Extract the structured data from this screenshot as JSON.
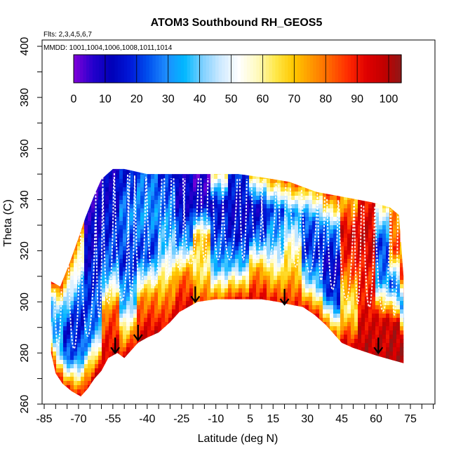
{
  "chart_data": {
    "type": "heatmap",
    "title": "ATOM3 Southbound RH_GEOS5",
    "xlabel": "Latitude (deg N)",
    "ylabel": "Theta (C)",
    "xlim": [
      -85,
      85
    ],
    "ylim": [
      260,
      400
    ],
    "xticks": [
      -85,
      -70,
      -55,
      -40,
      -25,
      -10,
      5,
      15,
      30,
      45,
      60,
      75
    ],
    "xtick_labels": [
      "-85",
      "-70",
      "-55",
      "-40",
      "-25",
      "-10",
      "5",
      "15",
      "30",
      "45",
      "60",
      "75"
    ],
    "yticks": [
      260,
      280,
      300,
      320,
      340,
      360,
      380,
      400
    ],
    "ytick_labels": [
      "260",
      "280",
      "300",
      "320",
      "340",
      "360",
      "380",
      "400"
    ],
    "annotations": [
      "Flts: 2,3,4,5,6,7",
      "MMDD: 1001,1004,1006,1008,1011,1014"
    ],
    "colorbar": {
      "min": 0,
      "max": 104,
      "ticks": [
        0,
        10,
        20,
        30,
        40,
        50,
        60,
        70,
        80,
        90,
        100
      ],
      "tick_labels": [
        "0",
        "10",
        "20",
        "30",
        "40",
        "50",
        "60",
        "70",
        "80",
        "90",
        "100"
      ],
      "colors": [
        "#7a00d8",
        "#2200cc",
        "#0000b8",
        "#0018d8",
        "#0050ee",
        "#1e8cff",
        "#00b8ff",
        "#7fd0ff",
        "#cfeaff",
        "#ffffff",
        "#fffac0",
        "#ffe84a",
        "#ffc800",
        "#ff9600",
        "#ff6400",
        "#ff2a00",
        "#e00000",
        "#c00000",
        "#8b1a1a"
      ]
    },
    "data_extent": {
      "bottom_boundary": [
        [
          -82,
          280
        ],
        [
          -80,
          272
        ],
        [
          -77,
          268
        ],
        [
          -73,
          265
        ],
        [
          -69,
          263
        ],
        [
          -66,
          266
        ],
        [
          -63,
          270
        ],
        [
          -60,
          273
        ],
        [
          -57,
          278
        ],
        [
          -53,
          280
        ],
        [
          -50,
          278
        ],
        [
          -47,
          281
        ],
        [
          -44,
          284
        ],
        [
          -40,
          286
        ],
        [
          -35,
          288
        ],
        [
          -30,
          292
        ],
        [
          -26,
          296
        ],
        [
          -22,
          298
        ],
        [
          -18,
          300
        ],
        [
          -10,
          301
        ],
        [
          0,
          301
        ],
        [
          10,
          301
        ],
        [
          17,
          300
        ],
        [
          22,
          299
        ],
        [
          28,
          298
        ],
        [
          33,
          295
        ],
        [
          38,
          291
        ],
        [
          42,
          287
        ],
        [
          45,
          284
        ],
        [
          50,
          282
        ],
        [
          60,
          279
        ],
        [
          68,
          277
        ],
        [
          72,
          276
        ]
      ],
      "top_boundary": [
        [
          -82,
          308
        ],
        [
          -78,
          306
        ],
        [
          -74,
          315
        ],
        [
          -70,
          325
        ],
        [
          -67,
          333
        ],
        [
          -63,
          342
        ],
        [
          -60,
          348
        ],
        [
          -55,
          352
        ],
        [
          -50,
          352
        ],
        [
          -45,
          351
        ],
        [
          -40,
          350
        ],
        [
          -30,
          350
        ],
        [
          -18,
          350
        ],
        [
          -10,
          350
        ],
        [
          0,
          350
        ],
        [
          8,
          349
        ],
        [
          15,
          348
        ],
        [
          22,
          347
        ],
        [
          28,
          345
        ],
        [
          34,
          343
        ],
        [
          40,
          342
        ],
        [
          46,
          341
        ],
        [
          52,
          340
        ],
        [
          58,
          339
        ],
        [
          62,
          338
        ],
        [
          66,
          337
        ],
        [
          70,
          334
        ],
        [
          72,
          310
        ]
      ]
    },
    "rh_field_bands": [
      {
        "lat_from": -82,
        "lat_to": -76,
        "values_low_to_high": [
          90,
          45,
          30,
          40,
          85
        ]
      },
      {
        "lat_from": -76,
        "lat_to": -68,
        "values_low_to_high": [
          88,
          25,
          15,
          45,
          75
        ]
      },
      {
        "lat_from": -68,
        "lat_to": -60,
        "values_low_to_high": [
          95,
          30,
          20,
          12,
          8
        ]
      },
      {
        "lat_from": -60,
        "lat_to": -52,
        "values_low_to_high": [
          95,
          80,
          25,
          15,
          10
        ]
      },
      {
        "lat_from": -52,
        "lat_to": -44,
        "values_low_to_high": [
          92,
          40,
          18,
          28,
          15
        ]
      },
      {
        "lat_from": -44,
        "lat_to": -36,
        "values_low_to_high": [
          96,
          75,
          20,
          30,
          25
        ]
      },
      {
        "lat_from": -36,
        "lat_to": -28,
        "values_low_to_high": [
          92,
          70,
          40,
          28,
          18
        ]
      },
      {
        "lat_from": -28,
        "lat_to": -20,
        "values_low_to_high": [
          94,
          78,
          30,
          12,
          10
        ]
      },
      {
        "lat_from": -20,
        "lat_to": -12,
        "values_low_to_high": [
          82,
          60,
          70,
          10,
          5
        ]
      },
      {
        "lat_from": -12,
        "lat_to": -4,
        "values_low_to_high": [
          80,
          35,
          22,
          12,
          60
        ]
      },
      {
        "lat_from": -4,
        "lat_to": 4,
        "values_low_to_high": [
          90,
          40,
          15,
          12,
          20
        ]
      },
      {
        "lat_from": 4,
        "lat_to": 12,
        "values_low_to_high": [
          92,
          72,
          25,
          10,
          65
        ]
      },
      {
        "lat_from": 12,
        "lat_to": 20,
        "values_low_to_high": [
          90,
          60,
          35,
          22,
          75
        ]
      },
      {
        "lat_from": 20,
        "lat_to": 28,
        "values_low_to_high": [
          88,
          70,
          55,
          30,
          80
        ]
      },
      {
        "lat_from": 28,
        "lat_to": 36,
        "values_low_to_high": [
          90,
          40,
          18,
          25,
          70
        ]
      },
      {
        "lat_from": 36,
        "lat_to": 44,
        "values_low_to_high": [
          80,
          20,
          10,
          30,
          85
        ]
      },
      {
        "lat_from": 44,
        "lat_to": 52,
        "values_low_to_high": [
          94,
          60,
          82,
          95,
          70
        ]
      },
      {
        "lat_from": 52,
        "lat_to": 60,
        "values_low_to_high": [
          98,
          92,
          88,
          96,
          90
        ]
      },
      {
        "lat_from": 60,
        "lat_to": 66,
        "values_low_to_high": [
          97,
          94,
          30,
          20,
          60
        ]
      },
      {
        "lat_from": 66,
        "lat_to": 72,
        "values_low_to_high": [
          99,
          96,
          22,
          85,
          75
        ]
      }
    ],
    "tropopause_arrows": [
      {
        "lat": -54,
        "theta": 280
      },
      {
        "lat": -44,
        "theta": 285
      },
      {
        "lat": -19,
        "theta": 300
      },
      {
        "lat": 20,
        "theta": 299
      },
      {
        "lat": 61,
        "theta": 280
      }
    ]
  }
}
